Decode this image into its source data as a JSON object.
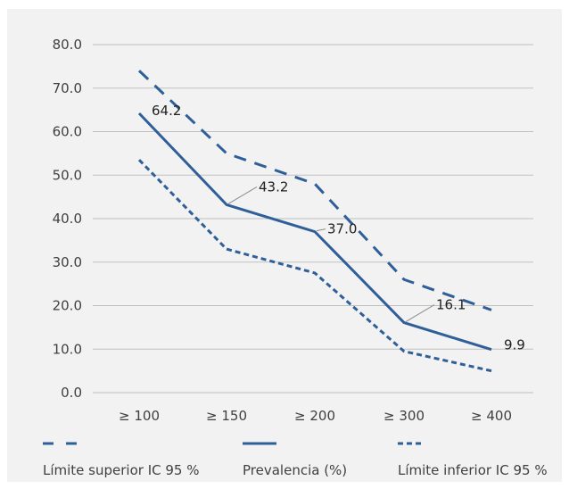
{
  "colors": {
    "series": "#2f5f98",
    "grid": "#bfbfbf",
    "background": "#f2f2f2",
    "text": "#404040"
  },
  "chart_data": {
    "type": "line",
    "title": "",
    "xlabel": "",
    "ylabel": "",
    "categories": [
      "≥ 100",
      "≥ 150",
      "≥ 200",
      "≥ 300",
      "≥ 400"
    ],
    "ylim": [
      0,
      80
    ],
    "y_ticks": [
      "0.0",
      "10.0",
      "20.0",
      "30.0",
      "40.0",
      "50.0",
      "60.0",
      "70.0",
      "80.0"
    ],
    "grid": true,
    "legend_position": "bottom",
    "series": [
      {
        "name": "Límite superior IC 95 %",
        "values": [
          74.0,
          55.0,
          48.0,
          26.0,
          19.0
        ],
        "line_style": "long-dash"
      },
      {
        "name": "Prevalencia (%)",
        "values": [
          64.2,
          43.2,
          37.0,
          16.1,
          9.9
        ],
        "line_style": "solid",
        "data_labels": [
          "64.2",
          "43.2",
          "37.0",
          "16.1",
          "9.9"
        ]
      },
      {
        "name": "Límite inferior IC 95 %",
        "values": [
          53.5,
          33.0,
          27.5,
          9.5,
          5.0
        ],
        "line_style": "short-dash"
      }
    ]
  }
}
